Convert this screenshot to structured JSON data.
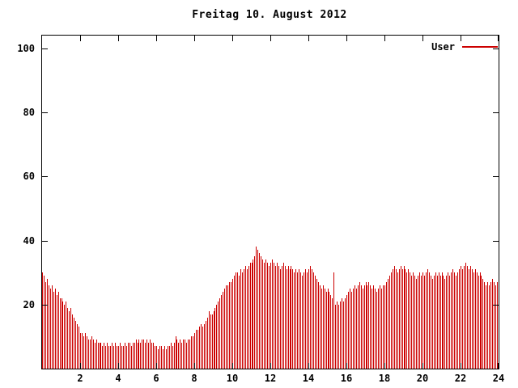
{
  "title": "Freitag 10. August 2012",
  "legend": {
    "label": "User",
    "color": "#cc0000"
  },
  "chart_data": {
    "type": "bar",
    "title": "Freitag 10. August 2012",
    "xlabel": "",
    "ylabel": "",
    "xlim": [
      0,
      24
    ],
    "ylim": [
      0,
      104
    ],
    "x_ticks": [
      2,
      4,
      6,
      8,
      10,
      12,
      14,
      16,
      18,
      20,
      22,
      24
    ],
    "y_ticks": [
      20,
      40,
      60,
      80,
      100
    ],
    "grid": false,
    "legend_position": "top-right",
    "x_unit": "hour-of-day",
    "x_interval_minutes": 5,
    "series": [
      {
        "name": "User",
        "color": "#cc0000",
        "values": [
          30,
          29,
          27,
          28,
          26,
          25,
          26,
          24,
          25,
          23,
          24,
          22,
          22,
          21,
          20,
          21,
          19,
          18,
          19,
          17,
          16,
          15,
          14,
          13,
          11,
          11,
          10,
          11,
          10,
          9,
          9,
          10,
          9,
          8,
          9,
          8,
          8,
          8,
          7,
          8,
          7,
          8,
          7,
          7,
          8,
          7,
          8,
          7,
          7,
          8,
          7,
          7,
          8,
          7,
          8,
          8,
          7,
          8,
          8,
          9,
          8,
          9,
          8,
          9,
          9,
          8,
          9,
          8,
          9,
          8,
          8,
          7,
          7,
          6,
          7,
          7,
          6,
          7,
          6,
          7,
          7,
          8,
          7,
          8,
          10,
          9,
          8,
          9,
          8,
          9,
          9,
          8,
          9,
          9,
          10,
          10,
          11,
          12,
          12,
          13,
          14,
          13,
          14,
          15,
          16,
          18,
          17,
          17,
          18,
          19,
          20,
          21,
          22,
          23,
          24,
          25,
          26,
          26,
          27,
          27,
          28,
          29,
          30,
          30,
          29,
          31,
          30,
          31,
          32,
          31,
          32,
          33,
          33,
          34,
          35,
          38,
          37,
          36,
          35,
          34,
          33,
          34,
          33,
          32,
          33,
          34,
          33,
          32,
          33,
          32,
          31,
          32,
          33,
          32,
          31,
          32,
          31,
          32,
          31,
          30,
          31,
          30,
          31,
          30,
          29,
          30,
          31,
          30,
          31,
          32,
          31,
          30,
          29,
          28,
          27,
          26,
          25,
          26,
          25,
          24,
          25,
          24,
          23,
          22,
          30,
          20,
          21,
          20,
          21,
          22,
          21,
          22,
          23,
          24,
          25,
          24,
          25,
          26,
          25,
          26,
          27,
          26,
          25,
          26,
          27,
          26,
          27,
          26,
          25,
          26,
          25,
          24,
          25,
          26,
          25,
          26,
          26,
          27,
          28,
          29,
          30,
          31,
          32,
          31,
          30,
          31,
          32,
          31,
          32,
          31,
          30,
          31,
          30,
          29,
          30,
          29,
          28,
          29,
          30,
          29,
          30,
          29,
          30,
          31,
          30,
          29,
          28,
          29,
          30,
          29,
          30,
          29,
          30,
          29,
          28,
          29,
          30,
          29,
          30,
          31,
          30,
          29,
          30,
          31,
          32,
          31,
          32,
          33,
          32,
          31,
          32,
          31,
          30,
          31,
          30,
          29,
          30,
          29,
          28,
          27,
          26,
          27,
          26,
          27,
          28,
          27,
          26,
          27
        ]
      }
    ]
  }
}
